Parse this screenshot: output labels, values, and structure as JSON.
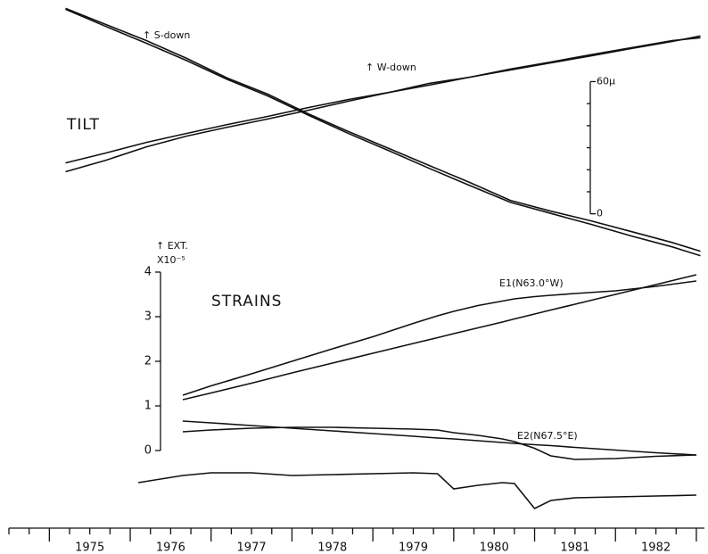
{
  "chart_data": [
    {
      "type": "line",
      "title": "TILT",
      "annotations": [
        "↑ S-down",
        "↑ W-down"
      ],
      "x": [
        1975.2,
        1975.7,
        1976.2,
        1976.7,
        1977.2,
        1977.7,
        1978.2,
        1978.7,
        1979.2,
        1979.7,
        1980.2,
        1980.7,
        1981.2,
        1981.7,
        1982.2,
        1982.7,
        1983.05
      ],
      "series": [
        {
          "color": "#111111",
          "values": [
            93.2,
            85.9,
            78.6,
            70.5,
            61.6,
            54.3,
            45.4,
            37.3,
            29.6,
            21.9,
            14.2,
            6.1,
            1.2,
            -3.2,
            -8.1,
            -13.0,
            -17.0
          ]
        },
        {
          "color": "#111111",
          "values": [
            92.8,
            85.0,
            77.4,
            69.5,
            61.0,
            53.5,
            44.8,
            36.4,
            28.6,
            20.6,
            12.8,
            5.2,
            0.2,
            -4.8,
            -10.1,
            -15.0,
            -19.0
          ]
        },
        {
          "color": "#111111",
          "values": [
            23.1,
            27.6,
            32.4,
            36.5,
            40.5,
            44.2,
            48.2,
            51.9,
            55.1,
            58.4,
            62.0,
            65.3,
            68.5,
            71.7,
            75.0,
            78.2,
            80.7
          ]
        },
        {
          "color": "#111111",
          "values": [
            19.1,
            24.3,
            30.4,
            35.3,
            39.3,
            43.0,
            47.0,
            51.1,
            55.1,
            59.2,
            62.0,
            65.7,
            68.9,
            72.2,
            75.4,
            78.6,
            79.9
          ]
        }
      ],
      "xlim": [
        1974.5,
        1983.1
      ],
      "ylim": [
        -22,
        95
      ],
      "yticks": [
        0,
        {
          "value": 60,
          "label": "60µ"
        }
      ],
      "yminorticks": [
        10,
        20,
        30,
        40,
        50
      ]
    },
    {
      "type": "line",
      "title": "STRAINS",
      "ylabel": [
        "↑ EXT.",
        "X10⁻⁵"
      ],
      "annotations": [
        "E1(N63.0°W)",
        "E2(N67.5°E)"
      ],
      "x": [
        1976.1,
        1976.65,
        1977.0,
        1977.5,
        1978.0,
        1978.5,
        1979.0,
        1979.5,
        1979.8,
        1980.0,
        1980.3,
        1980.6,
        1980.75,
        1981.0,
        1981.2,
        1981.5,
        1982.0,
        1982.5,
        1983.0
      ],
      "series": [
        {
          "color": "#111111",
          "values": [
            null,
            1.24,
            1.45,
            1.72,
            2.0,
            2.28,
            2.55,
            2.85,
            3.02,
            3.12,
            3.25,
            3.35,
            3.4,
            3.45,
            3.48,
            3.52,
            3.58,
            3.68,
            3.8
          ]
        },
        {
          "color": "#111111",
          "values": [
            null,
            1.14,
            1.29,
            1.51,
            1.74,
            1.96,
            2.18,
            2.4,
            2.53,
            2.62,
            2.75,
            2.88,
            2.95,
            3.06,
            3.15,
            3.28,
            3.5,
            3.72,
            3.94
          ]
        },
        {
          "color": "#111111",
          "values": [
            null,
            0.66,
            0.62,
            0.56,
            0.5,
            0.44,
            0.38,
            0.32,
            0.28,
            0.26,
            0.22,
            0.18,
            0.16,
            0.13,
            0.11,
            0.07,
            0.01,
            -0.05,
            -0.1
          ]
        },
        {
          "color": "#111111",
          "values": [
            null,
            0.42,
            0.46,
            0.5,
            0.52,
            0.52,
            0.5,
            0.48,
            0.46,
            0.4,
            0.34,
            0.26,
            0.2,
            0.05,
            -0.12,
            -0.2,
            -0.18,
            -0.13,
            -0.1
          ]
        },
        {
          "color": "#111111",
          "values": [
            -0.72,
            -0.56,
            -0.5,
            -0.5,
            -0.56,
            -0.54,
            -0.52,
            -0.5,
            -0.52,
            -0.86,
            -0.78,
            -0.72,
            -0.74,
            -1.3,
            -1.12,
            -1.06,
            -1.04,
            -1.02,
            -1.0
          ]
        }
      ],
      "xlim": [
        1974.5,
        1983.1
      ],
      "ylim": [
        -1.4,
        4
      ],
      "yticks": [
        0,
        1,
        2,
        3,
        4
      ],
      "xticks": [
        {
          "value": 1975.5,
          "label": "1975"
        },
        {
          "value": 1976.5,
          "label": "1976"
        },
        {
          "value": 1977.5,
          "label": "1977"
        },
        {
          "value": 1978.5,
          "label": "1978"
        },
        {
          "value": 1979.5,
          "label": "1979"
        },
        {
          "value": 1980.5,
          "label": "1980"
        },
        {
          "value": 1981.5,
          "label": "1981"
        },
        {
          "value": 1982.5,
          "label": "1982"
        }
      ],
      "xmajorticks": [
        1975,
        1976,
        1977,
        1978,
        1979,
        1980,
        1981,
        1982,
        1983
      ],
      "xminorticks": [
        1974.5,
        1974.75,
        1975.25,
        1975.75,
        1976.25,
        1976.75,
        1977.25,
        1977.75,
        1978.25,
        1978.75,
        1979.25,
        1979.75,
        1980.25,
        1980.75,
        1981.25,
        1981.75,
        1982.25,
        1982.75
      ]
    }
  ]
}
